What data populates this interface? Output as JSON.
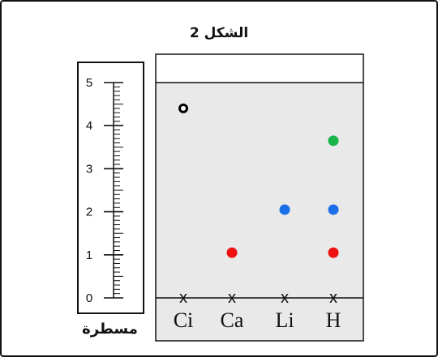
{
  "figure": {
    "title": "الشكل 2",
    "ruler_label": "مسطرة"
  },
  "ruler": {
    "min": 0,
    "max": 5,
    "major_ticks": [
      "0",
      "1",
      "2",
      "3",
      "4",
      "5"
    ],
    "minor_per_unit": 10
  },
  "plate": {
    "lanes": [
      "Ci",
      "Ca",
      "Li",
      "H"
    ],
    "origin_mark": "x",
    "spots": [
      {
        "lane": "Ci",
        "value": 4.4,
        "color": "#000000",
        "style": "ring"
      },
      {
        "lane": "Ca",
        "value": 1.05,
        "color": "#ee1111",
        "style": "filled"
      },
      {
        "lane": "Li",
        "value": 2.05,
        "color": "#1a6fe8",
        "style": "filled"
      },
      {
        "lane": "H",
        "value": 3.65,
        "color": "#19b54a",
        "style": "filled"
      },
      {
        "lane": "H",
        "value": 2.05,
        "color": "#1a6fe8",
        "style": "filled"
      },
      {
        "lane": "H",
        "value": 1.05,
        "color": "#ee1111",
        "style": "filled"
      }
    ]
  }
}
